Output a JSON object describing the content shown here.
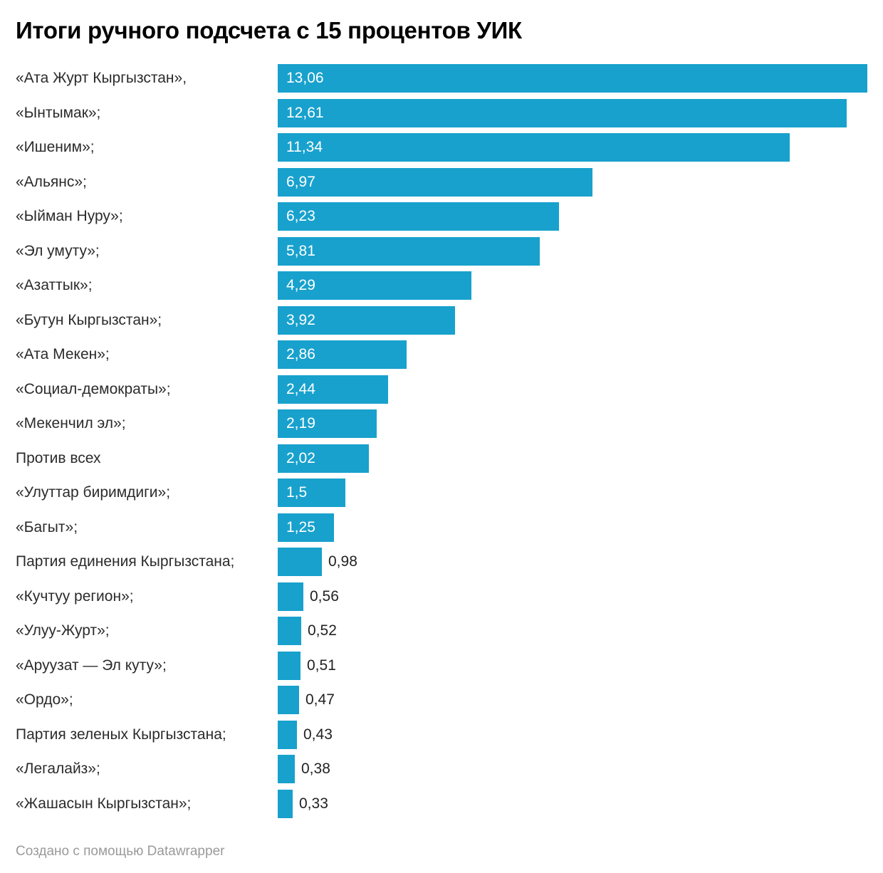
{
  "title": "Итоги ручного подсчета с 15 процентов УИК",
  "footer": {
    "credit": "Создано с помощью Datawrapper"
  },
  "colors": {
    "bar": "#18a1cd",
    "category_label": "#2b2b2b",
    "value_inside": "#ffffff",
    "value_outside": "#222222",
    "title": "#000000",
    "footer": "#9a9a9a"
  },
  "chart_data": {
    "type": "bar",
    "orientation": "horizontal",
    "title": "Итоги ручного подсчета с 15 процентов УИК",
    "xlabel": "",
    "ylabel": "",
    "xlim": [
      0,
      13.06
    ],
    "grid": false,
    "legend": false,
    "decimal_separator": ",",
    "inside_label_min": 1.25,
    "categories": [
      "«Ата Журт Кыргызстан»,",
      "«Ынтымак»;",
      "«Ишеним»;",
      "«Альянс»;",
      "«Ыйман Нуру»;",
      "«Эл умуту»;",
      "«Азаттык»;",
      "«Бутун Кыргызстан»;",
      "«Ата Мекен»;",
      "«Социал-демократы»;",
      "«Мекенчил эл»;",
      "Против всех",
      "«Улуттар биримдиги»;",
      "«Багыт»;",
      "Партия единения Кыргызстана;",
      "«Кучтуу регион»;",
      "«Улуу-Журт»;",
      "«Аруузат — Эл куту»;",
      "«Ордо»;",
      "Партия зеленых Кыргызстана;",
      "«Легалайз»;",
      "«Жашасын Кыргызстан»;"
    ],
    "values": [
      13.06,
      12.61,
      11.34,
      6.97,
      6.23,
      5.81,
      4.29,
      3.92,
      2.86,
      2.44,
      2.19,
      2.02,
      1.5,
      1.25,
      0.98,
      0.56,
      0.52,
      0.51,
      0.47,
      0.43,
      0.38,
      0.33
    ],
    "value_labels": [
      "13,06",
      "12,61",
      "11,34",
      "6,97",
      "6,23",
      "5,81",
      "4,29",
      "3,92",
      "2,86",
      "2,44",
      "2,19",
      "2,02",
      "1,5",
      "1,25",
      "0,98",
      "0,56",
      "0,52",
      "0,51",
      "0,47",
      "0,43",
      "0,38",
      "0,33"
    ]
  }
}
